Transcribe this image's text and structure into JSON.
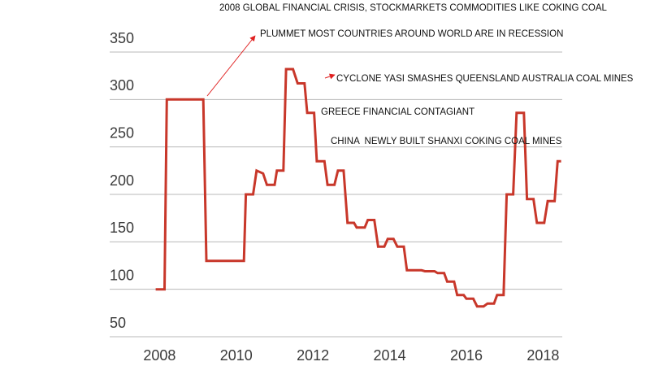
{
  "chart_data": {
    "type": "line",
    "annotations": [
      "2008 GLOBAL FINANCIAL CRISIS, STOCKMARKETS COMMODITIES LIKE COKING COAL",
      "PLUMMET MOST COUNTRIES AROUND WORLD ARE IN RECESSION",
      "CYCLONE YASI SMASHES QUEENSLAND AUSTRALIA COAL MINES",
      "GREECE FINANCIAL CONTAGIANT",
      "CHINA  NEWLY BUILT SHANXI COKING COAL MINES"
    ],
    "xlim": [
      2006.7,
      2018.5
    ],
    "xticks": [
      2008,
      2010,
      2012,
      2014,
      2016,
      2018
    ],
    "ylim": [
      50,
      350
    ],
    "yticks": [
      50,
      100,
      150,
      200,
      250,
      300,
      350
    ],
    "grid": true,
    "series": [
      {
        "color": "#c8372a",
        "x": [
          2007.9,
          2008.13,
          2008.19,
          2009.14,
          2009.22,
          2010.2,
          2010.25,
          2010.44,
          2010.53,
          2010.7,
          2010.8,
          2011.0,
          2011.06,
          2011.23,
          2011.3,
          2011.48,
          2011.6,
          2011.78,
          2011.85,
          2012.03,
          2012.1,
          2012.3,
          2012.38,
          2012.56,
          2012.65,
          2012.8,
          2012.9,
          2013.07,
          2013.14,
          2013.35,
          2013.43,
          2013.6,
          2013.7,
          2013.86,
          2013.95,
          2014.1,
          2014.2,
          2014.37,
          2014.45,
          2014.83,
          2014.92,
          2015.17,
          2015.25,
          2015.42,
          2015.5,
          2015.68,
          2015.76,
          2015.93,
          2016.0,
          2016.18,
          2016.28,
          2016.45,
          2016.55,
          2016.72,
          2016.8,
          2016.97,
          2017.05,
          2017.22,
          2017.31,
          2017.5,
          2017.58,
          2017.75,
          2017.84,
          2018.03,
          2018.12,
          2018.3,
          2018.38,
          2018.47
        ],
        "values": [
          100,
          100,
          300,
          300,
          130,
          130,
          200,
          200,
          225,
          222,
          210,
          210,
          225,
          225,
          332,
          332,
          317,
          317,
          286,
          286,
          235,
          235,
          210,
          210,
          225,
          225,
          170,
          170,
          165,
          165,
          173,
          173,
          145,
          145,
          153,
          153,
          145,
          145,
          120,
          120,
          119,
          119,
          117,
          117,
          108,
          108,
          94,
          94,
          90,
          90,
          82,
          82,
          85,
          85,
          94,
          94,
          200,
          200,
          286,
          286,
          195,
          195,
          170,
          170,
          193,
          193,
          235,
          235
        ]
      }
    ]
  }
}
